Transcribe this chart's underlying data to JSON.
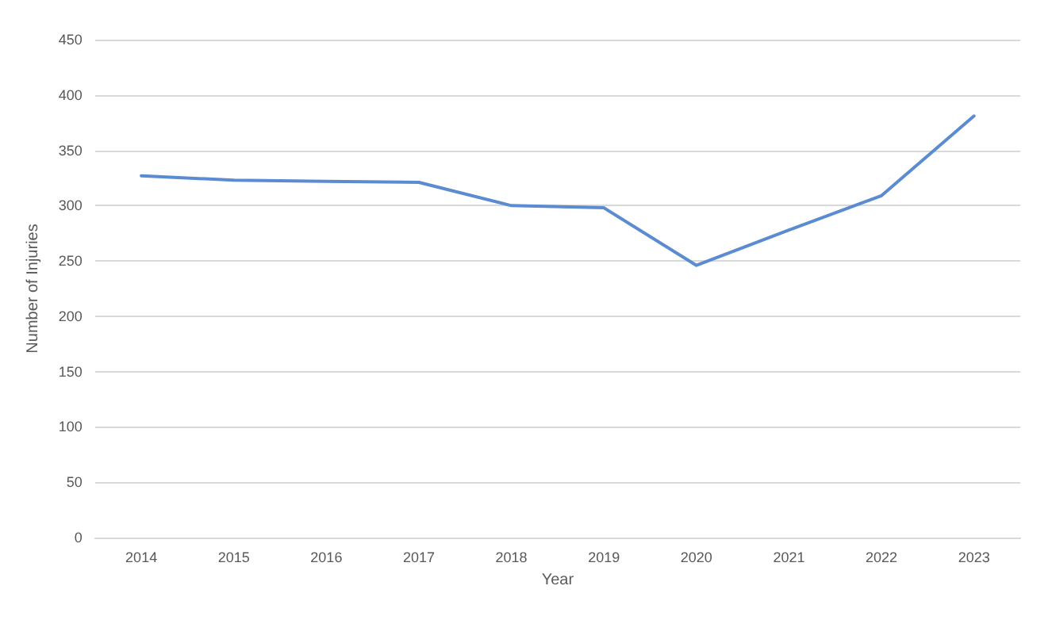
{
  "chart_data": {
    "type": "line",
    "xlabel": "Year",
    "ylabel": "Number of Injuries",
    "categories": [
      "2014",
      "2015",
      "2016",
      "2017",
      "2018",
      "2019",
      "2020",
      "2021",
      "2022",
      "2023"
    ],
    "series": [
      {
        "color": "#5b8bd0",
        "values": [
          327,
          323,
          322,
          321,
          300,
          298,
          246,
          278,
          309,
          381
        ]
      }
    ],
    "ylim": [
      0,
      450
    ],
    "yticks": [
      0,
      50,
      100,
      150,
      200,
      250,
      300,
      350,
      400,
      450
    ],
    "grid": "y",
    "marker": "none",
    "line_style": "solid"
  }
}
